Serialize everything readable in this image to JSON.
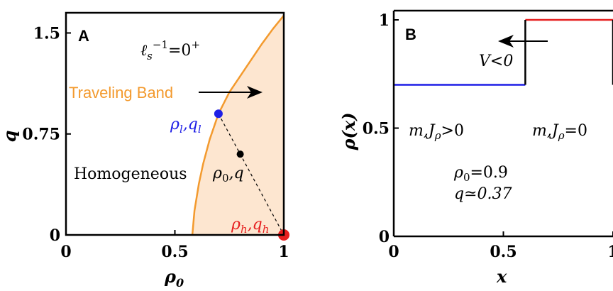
{
  "chart_data": [
    {
      "type": "area",
      "panel_label": "A",
      "xlabel": "ρ",
      "xlabel_sub": "0",
      "ylabel": "q",
      "xlim": [
        0,
        1
      ],
      "ylim": [
        0,
        1.65
      ],
      "xticks": [
        0,
        0.5,
        1
      ],
      "xtick_labels": [
        "0",
        "0.5",
        "1"
      ],
      "yticks": [
        0,
        0.75,
        1.5
      ],
      "ytick_labels": [
        "0",
        "0.75",
        "1.5"
      ],
      "grid": false,
      "colors": {
        "boundary": "#f39a2e",
        "fill": "#fde6d0",
        "point_low": "#1f1fe6",
        "point_high": "#e61f1f",
        "point_mid": "#000000"
      },
      "boundary_curve": {
        "x": [
          0.58,
          0.59,
          0.61,
          0.63,
          0.66,
          0.7,
          0.75,
          0.8,
          0.85,
          0.9,
          0.95,
          1.0
        ],
        "y": [
          0.0,
          0.18,
          0.38,
          0.53,
          0.71,
          0.9,
          1.06,
          1.18,
          1.3,
          1.42,
          1.53,
          1.63
        ]
      },
      "points": [
        {
          "name": "low",
          "x": 0.7,
          "y": 0.9
        },
        {
          "name": "mid",
          "x": 0.8,
          "y": 0.6
        },
        {
          "name": "high",
          "x": 1.0,
          "y": 0.0
        }
      ],
      "annotations": {
        "param_base": "ℓ",
        "param_sub": "s",
        "param_sup": "−1",
        "param_rest": "=0",
        "param_rest_sup": "+",
        "band_label": "Traveling Band",
        "homog_label": "Homogeneous",
        "low_label_rho": "ρ",
        "low_label_rho_sub": "l",
        "low_label_q": ",q",
        "low_label_q_sub": "l",
        "mid_label_rho": "ρ",
        "mid_label_rho_sub": "0",
        "mid_label_q": ",q",
        "high_label_rho": "ρ",
        "high_label_rho_sub": "h",
        "high_label_q": ",q",
        "high_label_q_sub": "h"
      }
    },
    {
      "type": "line",
      "panel_label": "B",
      "xlabel": "x",
      "ylabel": "ρ(x)",
      "xlim": [
        0,
        1
      ],
      "ylim": [
        0,
        1
      ],
      "xticks": [
        0,
        0.5,
        1
      ],
      "xtick_labels": [
        "0",
        "0.5",
        "1"
      ],
      "yticks": [
        0,
        0.5,
        1
      ],
      "ytick_labels": [
        "0",
        "0.5",
        "1"
      ],
      "grid": false,
      "colors": {
        "low": "#1f1fe6",
        "high": "#e61f1f",
        "step": "#000000"
      },
      "profile": {
        "low_segment": {
          "x": [
            0,
            0.6
          ],
          "y": 0.7
        },
        "high_segment": {
          "x": [
            0.6,
            1.0
          ],
          "y": 1.0
        },
        "step_x": [
          0.6,
          1.0
        ]
      },
      "annotations": {
        "velocity_text": "V<0",
        "left_region": "m,J",
        "left_region_sub": "ρ",
        "left_region_rel": ">0",
        "mid_region": "m,J",
        "mid_region_sub": "ρ",
        "mid_region_rel": "=0",
        "rho0_text": "ρ",
        "rho0_sub": "0",
        "rho0_val": "=0.9",
        "q_text": "q≃0.37"
      }
    }
  ]
}
